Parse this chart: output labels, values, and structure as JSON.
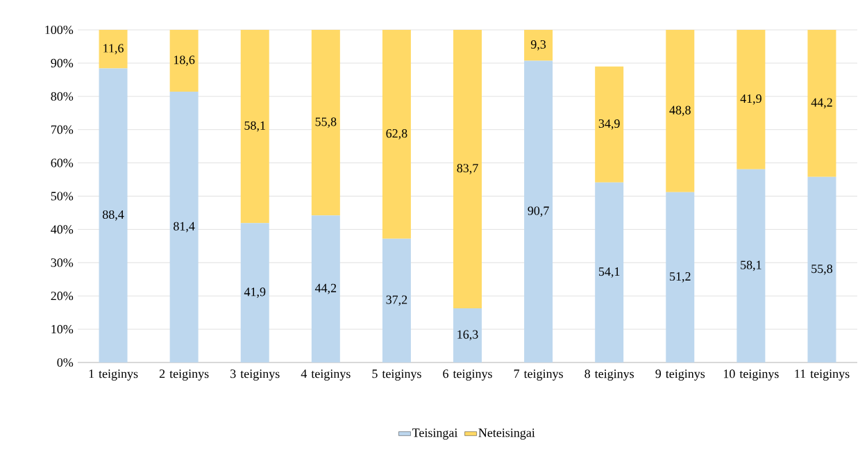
{
  "chart_data": {
    "type": "bar",
    "stacked": true,
    "categories": [
      "1 teiginys",
      "2 teiginys",
      "3 teiginys",
      "4 teiginys",
      "5 teiginys",
      "6 teiginys",
      "7 teiginys",
      "8 teiginys",
      "9 teiginys",
      "10 teiginys",
      "11 teiginys"
    ],
    "series": [
      {
        "name": "Teisingai",
        "color": "#bdd7ee",
        "values": [
          88.4,
          81.4,
          41.9,
          44.2,
          37.2,
          16.3,
          90.7,
          54.1,
          51.2,
          58.1,
          55.8
        ],
        "value_labels": [
          "88,4",
          "81,4",
          "41,9",
          "44,2",
          "37,2",
          "16,3",
          "90,7",
          "54,1",
          "51,2",
          "58,1",
          "55,8"
        ]
      },
      {
        "name": "Neteisingai",
        "color": "#ffd966",
        "values": [
          11.6,
          18.6,
          58.1,
          55.8,
          62.8,
          83.7,
          9.3,
          34.9,
          48.8,
          41.9,
          44.2
        ],
        "value_labels": [
          "11,6",
          "18,6",
          "58,1",
          "55,8",
          "62,8",
          "83,7",
          "9,3",
          "34,9",
          "48,8",
          "41,9",
          "44,2"
        ]
      }
    ],
    "ylim": [
      0,
      100
    ],
    "yticks": [
      {
        "value": 0,
        "label": "0%"
      },
      {
        "value": 10,
        "label": "10%"
      },
      {
        "value": 20,
        "label": "20%"
      },
      {
        "value": 30,
        "label": "30%"
      },
      {
        "value": 40,
        "label": "40%"
      },
      {
        "value": 50,
        "label": "50%"
      },
      {
        "value": 60,
        "label": "60%"
      },
      {
        "value": 70,
        "label": "70%"
      },
      {
        "value": 80,
        "label": "80%"
      },
      {
        "value": 90,
        "label": "90%"
      },
      {
        "value": 100,
        "label": "100%"
      }
    ],
    "grid": "y",
    "legend": "bottom"
  }
}
